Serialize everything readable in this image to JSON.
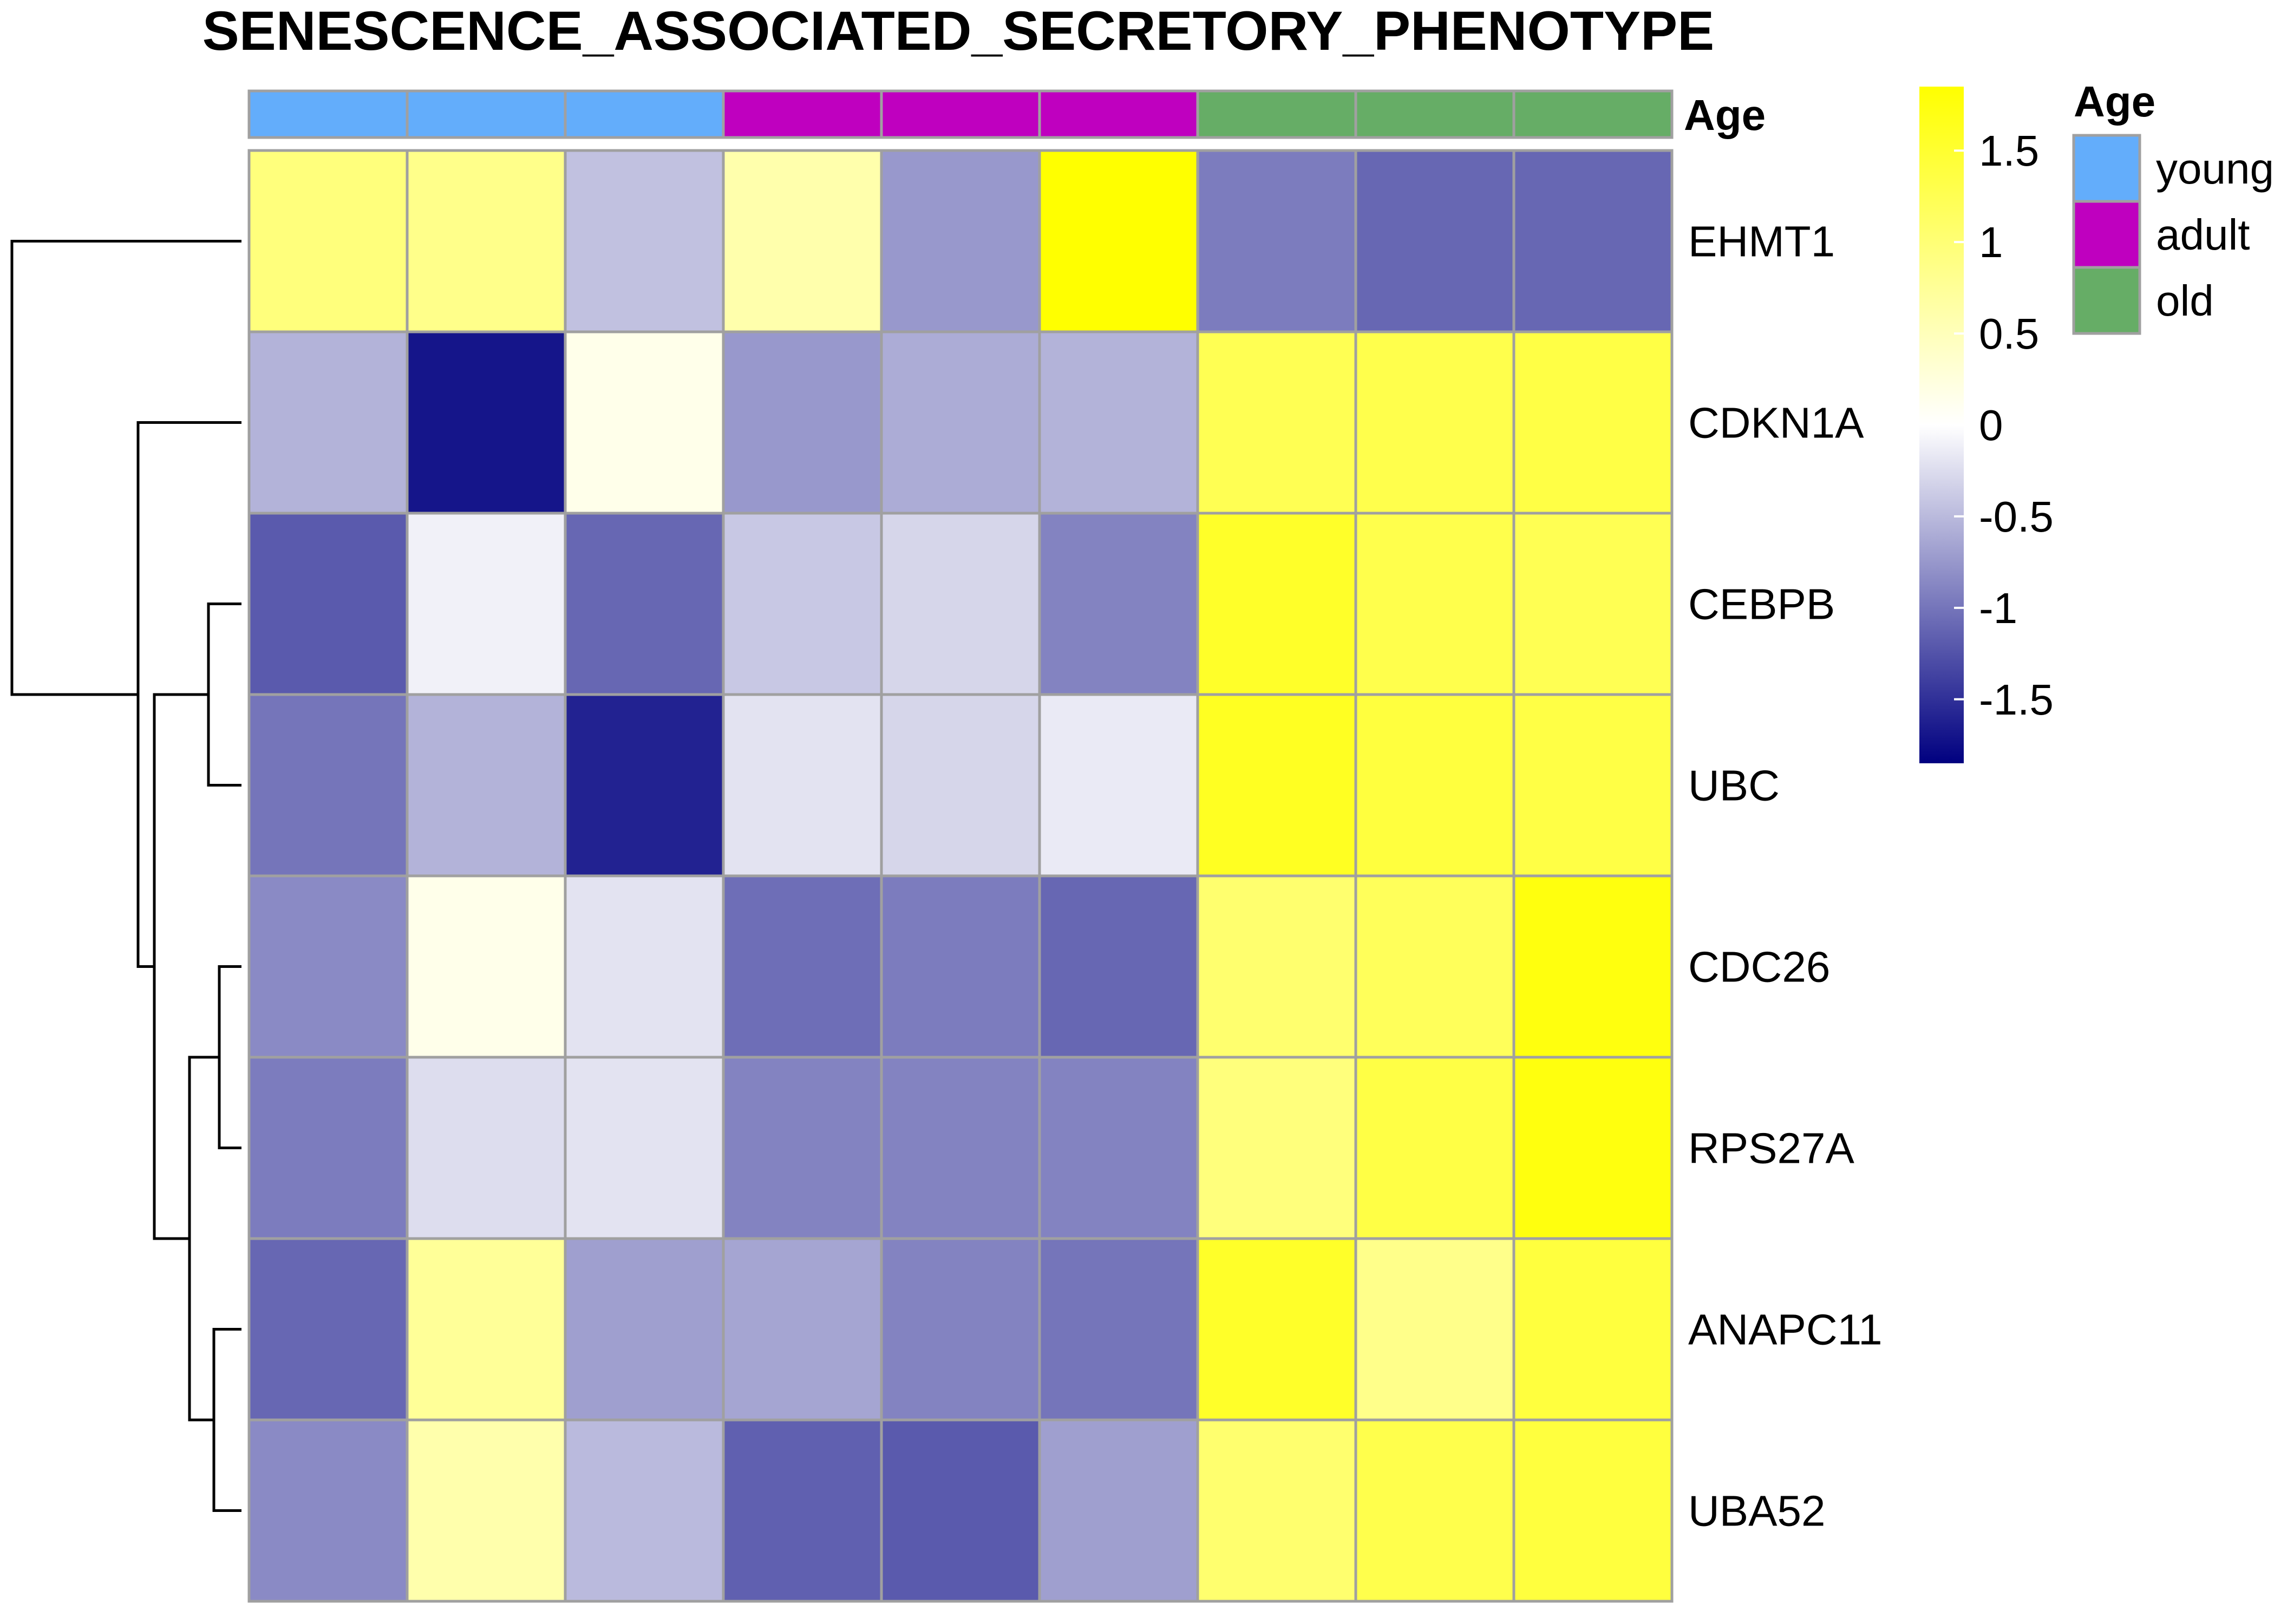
{
  "chart_data": {
    "type": "heatmap",
    "title": "SENESCENCE_ASSOCIATED_SECRETORY_PHENOTYPE",
    "rows": [
      "EHMT1",
      "CDKN1A",
      "CEBPB",
      "UBC",
      "CDC26",
      "RPS27A",
      "ANAPC11",
      "UBA52"
    ],
    "column_annotation": {
      "name": "Age",
      "values": [
        "young",
        "young",
        "young",
        "adult",
        "adult",
        "adult",
        "old",
        "old",
        "old"
      ]
    },
    "values": [
      [
        0.95,
        0.85,
        -0.45,
        0.6,
        -0.75,
        1.85,
        -0.95,
        -1.1,
        -1.1
      ],
      [
        -0.55,
        -1.7,
        0.15,
        -0.75,
        -0.6,
        -0.55,
        1.25,
        1.3,
        1.35
      ],
      [
        -1.2,
        -0.1,
        -1.1,
        -0.4,
        -0.3,
        -0.9,
        1.55,
        1.3,
        1.25
      ],
      [
        -1.0,
        -0.55,
        -1.6,
        -0.2,
        -0.3,
        -0.15,
        1.6,
        1.4,
        1.35
      ],
      [
        -0.85,
        0.15,
        -0.2,
        -1.05,
        -0.95,
        -1.1,
        1.05,
        1.2,
        1.75
      ],
      [
        -0.95,
        -0.25,
        -0.2,
        -0.9,
        -0.9,
        -0.9,
        0.95,
        1.35,
        1.75
      ],
      [
        -1.1,
        0.75,
        -0.7,
        -0.65,
        -0.9,
        -1.0,
        1.55,
        0.85,
        1.4
      ],
      [
        -0.85,
        0.6,
        -0.5,
        -1.15,
        -1.2,
        -0.7,
        1.05,
        1.3,
        1.4
      ]
    ],
    "color_scale": {
      "min": -1.85,
      "max": 1.85,
      "low_color": "#000080",
      "mid_color": "#ffffff",
      "high_color": "#ffff00",
      "ticks": [
        {
          "value": 1.5,
          "label": "1.5"
        },
        {
          "value": 1,
          "label": "1"
        },
        {
          "value": 0.5,
          "label": "0.5"
        },
        {
          "value": 0,
          "label": "0"
        },
        {
          "value": -0.5,
          "label": "-0.5"
        },
        {
          "value": -1,
          "label": "-1"
        },
        {
          "value": -1.5,
          "label": "-1.5"
        }
      ]
    },
    "annotation_legend": {
      "title": "Age",
      "entries": [
        {
          "label": "young",
          "color": "#63adfb"
        },
        {
          "label": "adult",
          "color": "#bf00bf"
        },
        {
          "label": "old",
          "color": "#66ad66"
        }
      ]
    },
    "row_dendrogram": {
      "shown": true,
      "merges": [
        [
          3,
          4
        ],
        [
          5,
          6
        ],
        [
          7,
          8
        ],
        [
          -1,
          1
        ],
        [
          -2,
          3
        ],
        [
          2,
          4
        ],
        [
          -1,
          6
        ],
        [
          5,
          7
        ]
      ]
    },
    "grid_color": "#a0a0a0"
  }
}
